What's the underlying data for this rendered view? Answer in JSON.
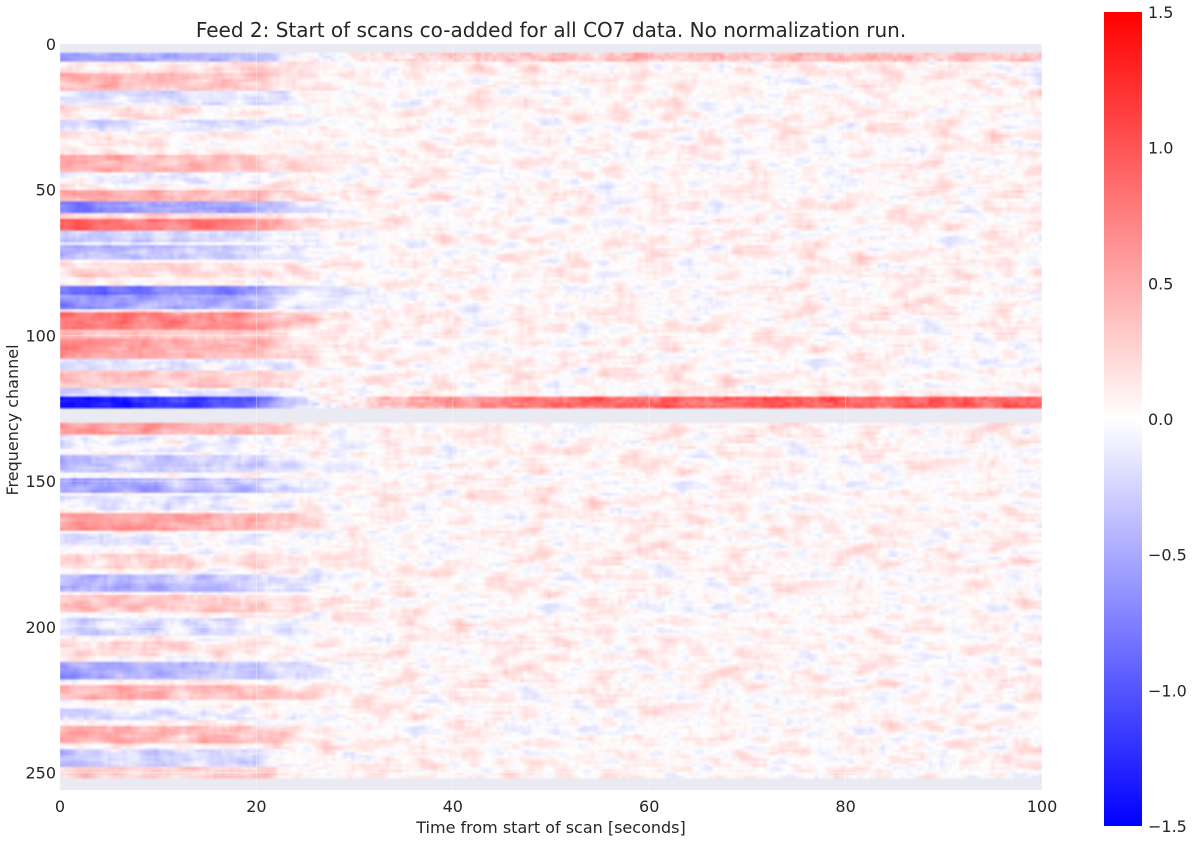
{
  "chart_data": {
    "type": "heatmap",
    "title": "Feed 2: Start of scans co-added for all CO7 data. No normalization run.",
    "xlabel": "Time from start of scan [seconds]",
    "ylabel": "Frequency channel",
    "xlim": [
      0,
      100
    ],
    "ylim": [
      256,
      0
    ],
    "x_ticks": [
      0,
      20,
      40,
      60,
      80,
      100
    ],
    "y_ticks": [
      0,
      50,
      100,
      150,
      200,
      250
    ],
    "grid": true,
    "colormap": "bwr",
    "colors": {
      "low": "#0000ff",
      "mid": "#ffffff",
      "high": "#ff0000",
      "masked": "#eaeaf2"
    },
    "colorbar": {
      "vmin": -1.5,
      "vmax": 1.5,
      "ticks": [
        1.5,
        1.0,
        0.5,
        0.0,
        -0.5,
        -1.0,
        -1.5
      ],
      "tick_labels": [
        "1.5",
        "1.0",
        "0.5",
        "0.0",
        "−0.5",
        "−1.0",
        "−1.5"
      ]
    },
    "masked_channel_ranges": [
      [
        0,
        3
      ],
      [
        125,
        130
      ],
      [
        252,
        256
      ]
    ],
    "noise_amplitude": 0.18,
    "channel_offsets_early_time": [
      {
        "channels": [
          3,
          6
        ],
        "value": -0.6
      },
      {
        "channels": [
          6,
          10
        ],
        "value": 0.15
      },
      {
        "channels": [
          10,
          16
        ],
        "value": 0.35
      },
      {
        "channels": [
          16,
          21
        ],
        "value": -0.25
      },
      {
        "channels": [
          21,
          26
        ],
        "value": 0.1
      },
      {
        "channels": [
          26,
          30
        ],
        "value": -0.2
      },
      {
        "channels": [
          30,
          35
        ],
        "value": 0.05
      },
      {
        "channels": [
          38,
          44
        ],
        "value": 0.4
      },
      {
        "channels": [
          44,
          48
        ],
        "value": -0.15
      },
      {
        "channels": [
          50,
          54
        ],
        "value": 0.45
      },
      {
        "channels": [
          54,
          58
        ],
        "value": -0.75
      },
      {
        "channels": [
          58,
          60
        ],
        "value": 0.2
      },
      {
        "channels": [
          60,
          64
        ],
        "value": 0.9
      },
      {
        "channels": [
          64,
          68
        ],
        "value": -0.3
      },
      {
        "channels": [
          69,
          74
        ],
        "value": -0.45
      },
      {
        "channels": [
          75,
          80
        ],
        "value": 0.2
      },
      {
        "channels": [
          83,
          86
        ],
        "value": -1.0
      },
      {
        "channels": [
          86,
          91
        ],
        "value": -0.7
      },
      {
        "channels": [
          92,
          98
        ],
        "value": 0.8
      },
      {
        "channels": [
          98,
          101
        ],
        "value": 0.4
      },
      {
        "channels": [
          101,
          108
        ],
        "value": 0.55
      },
      {
        "channels": [
          108,
          112
        ],
        "value": -0.2
      },
      {
        "channels": [
          112,
          118
        ],
        "value": 0.3
      },
      {
        "channels": [
          118,
          121
        ],
        "value": -0.25
      },
      {
        "channels": [
          121,
          125
        ],
        "value": -1.5
      },
      {
        "channels": [
          130,
          134
        ],
        "value": 0.55
      },
      {
        "channels": [
          134,
          140
        ],
        "value": -0.15
      },
      {
        "channels": [
          141,
          147
        ],
        "value": -0.4
      },
      {
        "channels": [
          149,
          154
        ],
        "value": -0.6
      },
      {
        "channels": [
          155,
          160
        ],
        "value": -0.2
      },
      {
        "channels": [
          161,
          167
        ],
        "value": 0.6
      },
      {
        "channels": [
          168,
          172
        ],
        "value": -0.15
      },
      {
        "channels": [
          175,
          180
        ],
        "value": 0.2
      },
      {
        "channels": [
          182,
          188
        ],
        "value": -0.5
      },
      {
        "channels": [
          189,
          195
        ],
        "value": 0.3
      },
      {
        "channels": [
          197,
          203
        ],
        "value": -0.3
      },
      {
        "channels": [
          205,
          210
        ],
        "value": 0.2
      },
      {
        "channels": [
          212,
          218
        ],
        "value": -0.55
      },
      {
        "channels": [
          220,
          225
        ],
        "value": 0.45
      },
      {
        "channels": [
          228,
          232
        ],
        "value": -0.2
      },
      {
        "channels": [
          234,
          240
        ],
        "value": 0.4
      },
      {
        "channels": [
          242,
          248
        ],
        "value": -0.3
      },
      {
        "channels": [
          248,
          252
        ],
        "value": 0.3
      }
    ],
    "late_time_rows": [
      {
        "channels": [
          3,
          6
        ],
        "value": 0.3
      },
      {
        "channels": [
          121,
          125
        ],
        "value": 0.85
      }
    ]
  }
}
